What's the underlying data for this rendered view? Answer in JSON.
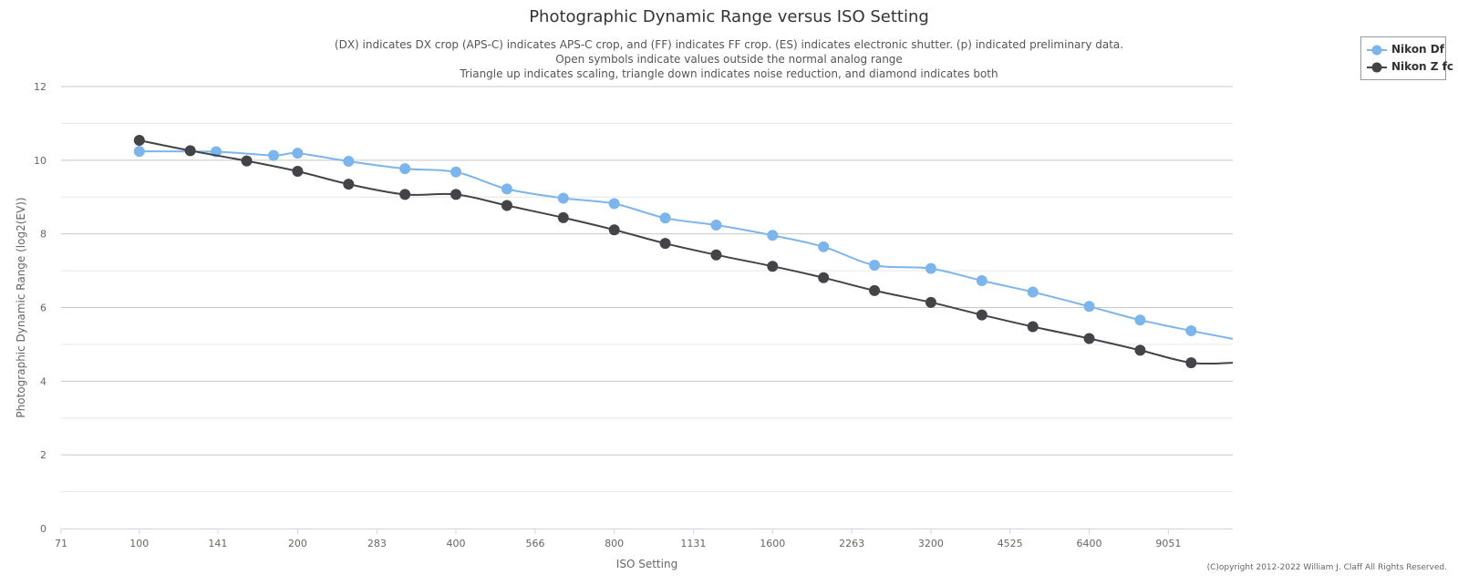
{
  "chart_data": {
    "type": "line",
    "title": "Photographic Dynamic Range versus ISO Setting",
    "subtitle_lines": [
      "(DX) indicates DX crop (APS-C) indicates APS-C crop, and (FF) indicates FF crop. (ES) indicates electronic shutter. (p) indicated preliminary data.",
      "Open symbols indicate values outside the normal analog range",
      "Triangle up indicates scaling, triangle down indicates noise reduction, and diamond indicates both"
    ],
    "xlabel": "ISO Setting",
    "ylabel": "Photographic Dynamic Range (log2(EV))",
    "x_scale": "log2",
    "xlim": [
      71,
      12000
    ],
    "ylim": [
      0,
      12
    ],
    "x_ticks": [
      71,
      100,
      141,
      200,
      283,
      400,
      566,
      800,
      1131,
      1600,
      2263,
      3200,
      4525,
      6400,
      9051
    ],
    "y_ticks": [
      0,
      2,
      4,
      6,
      8,
      10,
      12
    ],
    "grid": true,
    "legend_position": "top-right",
    "series": [
      {
        "name": "Nikon Df",
        "color": "#7cb5ec",
        "x": [
          100,
          140,
          180,
          200,
          250,
          320,
          400,
          500,
          640,
          800,
          1000,
          1250,
          1600,
          2000,
          2500,
          3200,
          4000,
          5000,
          6400,
          8000,
          10000
        ],
        "y": [
          10.24,
          10.23,
          10.13,
          10.19,
          9.97,
          9.77,
          9.68,
          9.22,
          8.97,
          8.82,
          8.43,
          8.24,
          7.96,
          7.65,
          7.15,
          7.06,
          6.73,
          6.42,
          6.03,
          5.66,
          5.37
        ],
        "extends_to": [
          12000,
          5.15
        ]
      },
      {
        "name": "Nikon Z fc",
        "color": "#434348",
        "x": [
          100,
          125,
          160,
          200,
          250,
          320,
          400,
          500,
          640,
          800,
          1000,
          1250,
          1600,
          2000,
          2500,
          3200,
          4000,
          5000,
          6400,
          8000,
          10000
        ],
        "y": [
          10.54,
          10.26,
          9.98,
          9.7,
          9.35,
          9.07,
          9.07,
          8.77,
          8.44,
          8.11,
          7.74,
          7.43,
          7.12,
          6.81,
          6.46,
          6.14,
          5.8,
          5.48,
          5.16,
          4.84,
          4.5
        ],
        "extends_to": [
          12000,
          4.5
        ]
      }
    ]
  },
  "copyright": "(C)opyright 2012-2022 William J. Claff All Rights Reserved."
}
